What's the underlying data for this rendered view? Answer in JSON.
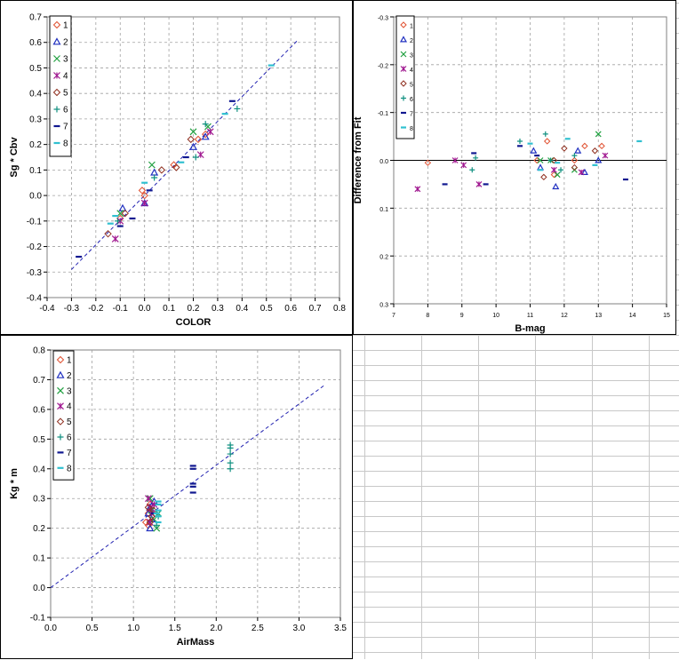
{
  "colors": {
    "s1": "#e05030",
    "s2": "#2030c0",
    "s3": "#20a040",
    "s4": "#a01890",
    "s5": "#903020",
    "s6": "#109080",
    "s7": "#101890",
    "s8": "#30c0d0",
    "fit": "#2020b0",
    "grid": "#a0a0a0"
  },
  "chart_data": [
    {
      "type": "scatter",
      "title": "",
      "xlabel": "COLOR",
      "ylabel": "Sg * Cbv",
      "xlim": [
        -0.4,
        0.8
      ],
      "ylim": [
        -0.4,
        0.7
      ],
      "xticks": [
        "-0.4",
        "-0.3",
        "-0.2",
        "-0.1",
        "0.0",
        "0.1",
        "0.2",
        "0.3",
        "0.4",
        "0.5",
        "0.6",
        "0.7",
        "0.8"
      ],
      "yticks": [
        "-0.4",
        "-0.3",
        "-0.2",
        "-0.1",
        "0.0",
        "0.1",
        "0.2",
        "0.3",
        "0.4",
        "0.5",
        "0.6",
        "0.7"
      ],
      "grid": true,
      "legend": "top-left",
      "fit_line": {
        "x": [
          -0.3,
          0.63
        ],
        "y": [
          -0.29,
          0.61
        ]
      },
      "series": [
        {
          "name": "1",
          "marker": "diamond",
          "points": [
            [
              0.0,
              0.0
            ],
            [
              -0.01,
              0.02
            ],
            [
              0.12,
              0.12
            ],
            [
              0.22,
              0.22
            ],
            [
              0.25,
              0.24
            ],
            [
              -0.1,
              -0.09
            ]
          ]
        },
        {
          "name": "2",
          "marker": "triangle",
          "points": [
            [
              0.04,
              0.09
            ],
            [
              0.2,
              0.19
            ],
            [
              0.25,
              0.23
            ],
            [
              -0.09,
              -0.05
            ],
            [
              0.0,
              -0.03
            ]
          ]
        },
        {
          "name": "3",
          "marker": "x",
          "points": [
            [
              0.03,
              0.12
            ],
            [
              0.2,
              0.25
            ],
            [
              0.26,
              0.27
            ],
            [
              -0.1,
              -0.07
            ]
          ]
        },
        {
          "name": "4",
          "marker": "star",
          "points": [
            [
              -0.12,
              -0.17
            ],
            [
              -0.1,
              -0.1
            ],
            [
              0.0,
              -0.03
            ],
            [
              0.23,
              0.16
            ],
            [
              0.27,
              0.25
            ]
          ]
        },
        {
          "name": "5",
          "marker": "diamond",
          "points": [
            [
              -0.15,
              -0.15
            ],
            [
              0.07,
              0.1
            ],
            [
              0.13,
              0.11
            ],
            [
              0.19,
              0.22
            ],
            [
              -0.08,
              -0.07
            ]
          ]
        },
        {
          "name": "6",
          "marker": "plus",
          "points": [
            [
              0.38,
              0.34
            ],
            [
              0.25,
              0.28
            ],
            [
              0.04,
              0.07
            ],
            [
              0.21,
              0.15
            ],
            [
              -0.11,
              -0.1
            ]
          ]
        },
        {
          "name": "7",
          "marker": "dash",
          "points": [
            [
              -0.27,
              -0.24
            ],
            [
              -0.1,
              -0.12
            ],
            [
              -0.05,
              -0.09
            ],
            [
              0.02,
              0.02
            ],
            [
              0.36,
              0.37
            ],
            [
              0.17,
              0.15
            ]
          ]
        },
        {
          "name": "8",
          "marker": "dash",
          "points": [
            [
              0.52,
              0.51
            ],
            [
              -0.12,
              -0.08
            ],
            [
              0.0,
              0.05
            ],
            [
              0.15,
              0.13
            ],
            [
              0.33,
              0.32
            ],
            [
              -0.14,
              -0.11
            ]
          ]
        }
      ]
    },
    {
      "type": "scatter",
      "title": "",
      "xlabel": "B-mag",
      "ylabel": "Difference from Fit",
      "xlim": [
        7,
        15
      ],
      "ylim": [
        -0.3,
        0.3
      ],
      "y_reversed": true,
      "xticks": [
        "7",
        "8",
        "9",
        "10",
        "11",
        "12",
        "13",
        "14",
        "15"
      ],
      "yticks": [
        "-0.3",
        "-0.2",
        "-0.1",
        "0.0",
        "0.1",
        "0.2",
        "0.3"
      ],
      "grid": true,
      "legend": "top-left",
      "zero_line": 0,
      "series": [
        {
          "name": "1",
          "marker": "diamond",
          "points": [
            [
              8.0,
              0.005
            ],
            [
              11.5,
              -0.04
            ],
            [
              11.7,
              0.03
            ],
            [
              12.3,
              0.0
            ],
            [
              12.6,
              -0.03
            ],
            [
              13.1,
              -0.03
            ],
            [
              11.2,
              0.0
            ]
          ]
        },
        {
          "name": "2",
          "marker": "triangle",
          "points": [
            [
              11.1,
              -0.02
            ],
            [
              11.3,
              0.015
            ],
            [
              11.75,
              0.055
            ],
            [
              12.4,
              -0.02
            ],
            [
              12.6,
              0.025
            ],
            [
              13.0,
              0.0
            ]
          ]
        },
        {
          "name": "3",
          "marker": "x",
          "points": [
            [
              11.3,
              0.0
            ],
            [
              11.8,
              0.03
            ],
            [
              12.3,
              0.02
            ],
            [
              13.0,
              -0.055
            ],
            [
              11.6,
              0.0
            ]
          ]
        },
        {
          "name": "4",
          "marker": "star",
          "points": [
            [
              7.7,
              0.06
            ],
            [
              8.8,
              0.0
            ],
            [
              9.05,
              0.01
            ],
            [
              9.5,
              0.05
            ],
            [
              11.7,
              0.02
            ],
            [
              12.5,
              0.025
            ],
            [
              13.2,
              -0.01
            ]
          ]
        },
        {
          "name": "5",
          "marker": "diamond",
          "points": [
            [
              11.4,
              0.035
            ],
            [
              11.7,
              0.0
            ],
            [
              12.0,
              -0.025
            ],
            [
              12.3,
              0.015
            ],
            [
              12.9,
              -0.02
            ]
          ]
        },
        {
          "name": "6",
          "marker": "plus",
          "points": [
            [
              9.3,
              0.02
            ],
            [
              11.6,
              0.0
            ],
            [
              11.9,
              0.02
            ],
            [
              12.3,
              -0.01
            ],
            [
              11.45,
              -0.055
            ],
            [
              9.4,
              -0.005
            ],
            [
              10.7,
              -0.04
            ]
          ]
        },
        {
          "name": "7",
          "marker": "dash",
          "points": [
            [
              8.5,
              0.05
            ],
            [
              9.7,
              0.05
            ],
            [
              10.7,
              -0.03
            ],
            [
              11.2,
              -0.01
            ],
            [
              13.8,
              0.04
            ],
            [
              9.35,
              -0.015
            ]
          ]
        },
        {
          "name": "8",
          "marker": "dash",
          "points": [
            [
              11.0,
              -0.035
            ],
            [
              11.3,
              0.02
            ],
            [
              12.1,
              -0.045
            ],
            [
              12.9,
              0.01
            ],
            [
              14.2,
              -0.04
            ],
            [
              11.8,
              0.005
            ]
          ]
        }
      ]
    },
    {
      "type": "scatter",
      "title": "",
      "xlabel": "AirMass",
      "ylabel": "Kg * m",
      "xlim": [
        0.0,
        3.5
      ],
      "ylim": [
        -0.1,
        0.8
      ],
      "xticks": [
        "0.0",
        "0.5",
        "1.0",
        "1.5",
        "2.0",
        "2.5",
        "3.0",
        "3.5"
      ],
      "yticks": [
        "-0.1",
        "0.0",
        "0.1",
        "0.2",
        "0.3",
        "0.4",
        "0.5",
        "0.6",
        "0.7",
        "0.8"
      ],
      "grid": true,
      "legend": "top-left",
      "fit_line": {
        "x": [
          0.0,
          3.3
        ],
        "y": [
          0.0,
          0.68
        ]
      },
      "series": [
        {
          "name": "1",
          "marker": "diamond",
          "points": [
            [
              1.15,
              0.22
            ],
            [
              1.18,
              0.25
            ],
            [
              1.2,
              0.28
            ],
            [
              1.22,
              0.24
            ],
            [
              1.18,
              0.21
            ],
            [
              1.2,
              0.26
            ]
          ]
        },
        {
          "name": "2",
          "marker": "triangle",
          "points": [
            [
              1.2,
              0.2
            ],
            [
              1.22,
              0.23
            ],
            [
              1.25,
              0.29
            ],
            [
              1.2,
              0.27
            ],
            [
              1.18,
              0.25
            ]
          ]
        },
        {
          "name": "3",
          "marker": "x",
          "points": [
            [
              1.22,
              0.26
            ],
            [
              1.25,
              0.23
            ],
            [
              1.28,
              0.2
            ],
            [
              1.2,
              0.3
            ],
            [
              1.3,
              0.25
            ]
          ]
        },
        {
          "name": "4",
          "marker": "star",
          "points": [
            [
              1.18,
              0.3
            ],
            [
              1.2,
              0.27
            ],
            [
              1.22,
              0.25
            ],
            [
              1.2,
              0.22
            ],
            [
              1.25,
              0.28
            ]
          ]
        },
        {
          "name": "5",
          "marker": "diamond",
          "points": [
            [
              1.2,
              0.22
            ],
            [
              1.22,
              0.24
            ],
            [
              1.18,
              0.27
            ],
            [
              1.24,
              0.26
            ]
          ]
        },
        {
          "name": "6",
          "marker": "plus",
          "points": [
            [
              2.17,
              0.4
            ],
            [
              2.17,
              0.42
            ],
            [
              2.17,
              0.45
            ],
            [
              2.17,
              0.47
            ],
            [
              2.17,
              0.48
            ],
            [
              1.3,
              0.24
            ],
            [
              1.28,
              0.21
            ]
          ]
        },
        {
          "name": "7",
          "marker": "dash",
          "points": [
            [
              1.72,
              0.32
            ],
            [
              1.72,
              0.34
            ],
            [
              1.72,
              0.35
            ],
            [
              1.72,
              0.4
            ],
            [
              1.72,
              0.41
            ],
            [
              1.25,
              0.25
            ]
          ]
        },
        {
          "name": "8",
          "marker": "dash",
          "points": [
            [
              1.3,
              0.22
            ],
            [
              1.3,
              0.24
            ],
            [
              1.3,
              0.26
            ],
            [
              1.3,
              0.28
            ],
            [
              1.28,
              0.25
            ],
            [
              1.3,
              0.29
            ]
          ]
        }
      ]
    }
  ]
}
